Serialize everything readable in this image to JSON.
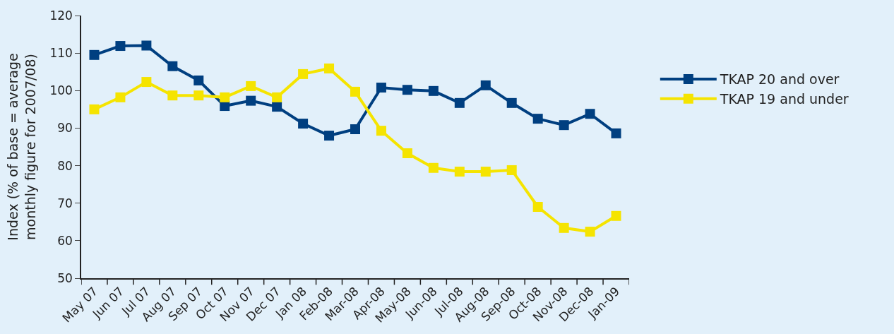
{
  "chart_data": {
    "type": "line",
    "ylabel": "Index (% of base = average\nmonthly figure for 2007/08)",
    "categories": [
      "May 07",
      "Jun 07",
      "Jul 07",
      "Aug 07",
      "Sep 07",
      "Oct 07",
      "Nov 07",
      "Dec 07",
      "Jan 08",
      "Feb-08",
      "Mar-08",
      "Apr-08",
      "May-08",
      "Jun-08",
      "Jul-08",
      "Aug-08",
      "Sep-08",
      "Oct-08",
      "Nov-08",
      "Dec-08",
      "Jan-09"
    ],
    "series": [
      {
        "name": "TKAP 20 and over",
        "color": "#003f80",
        "values": [
          109.5,
          111.9,
          112,
          106.5,
          102.7,
          95.9,
          97.3,
          95.7,
          91.2,
          88,
          89.7,
          100.8,
          100.2,
          99.9,
          96.7,
          101.4,
          96.7,
          92.5,
          90.8,
          93.8,
          88.6
        ]
      },
      {
        "name": "TKAP 19 and under",
        "color": "#f5e400",
        "values": [
          95,
          98.2,
          102.3,
          98.7,
          98.7,
          98.2,
          101.2,
          98.2,
          104.4,
          105.9,
          99.7,
          89.3,
          83.3,
          79.4,
          78.4,
          78.4,
          78.8,
          69,
          63.4,
          62.4,
          66.6
        ]
      }
    ],
    "ylim": [
      50,
      120
    ],
    "yticks": [
      50,
      60,
      70,
      80,
      90,
      100,
      110,
      120
    ],
    "grid": false,
    "legend": "right",
    "marker": "square",
    "line_style": "solid"
  }
}
